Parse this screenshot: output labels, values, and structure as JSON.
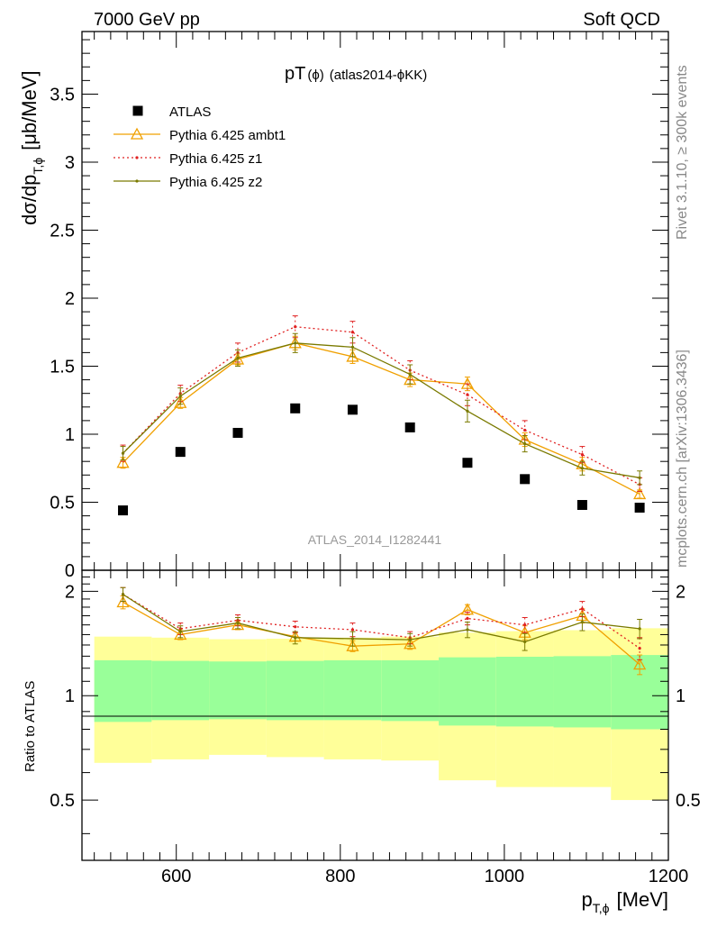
{
  "header": {
    "left": "7000 GeV pp",
    "right": "Soft QCD"
  },
  "side_labels": {
    "rivet": "Rivet 3.1.10, ≥ 300k events",
    "mcplots": "mcplots.cern.ch [arXiv:1306.3436]"
  },
  "watermark": "ATLAS_2014_I1282441",
  "chart_data": [
    {
      "type": "scatter",
      "title_main": "pT",
      "title_sub": "(ϕ)",
      "title_tail": "(atlas2014-ϕKK)",
      "ylabel": "dσ/dp",
      "ylabel_sub": "T,ϕ",
      "ylabel_unit": "[μb/MeV]",
      "xlim": [
        485,
        1200
      ],
      "ylim": [
        0,
        3.96
      ],
      "yticks": [
        0,
        0.5,
        1,
        1.5,
        2,
        2.5,
        3,
        3.5
      ],
      "ytick_labels": [
        "0",
        "0.5",
        "1",
        "1.5",
        "2",
        "2.5",
        "3",
        "3.5"
      ],
      "x": [
        535,
        605,
        675,
        745,
        815,
        885,
        955,
        1025,
        1095,
        1165
      ],
      "series": [
        {
          "name": "ATLAS",
          "color": "#000000",
          "marker": "square",
          "values": [
            0.44,
            0.87,
            1.01,
            1.19,
            1.18,
            1.05,
            0.79,
            0.67,
            0.48,
            0.46
          ]
        },
        {
          "name": "Pythia 6.425 ambt1",
          "color": "#f0a000",
          "marker": "triangle",
          "dash": "",
          "values": [
            0.79,
            1.23,
            1.55,
            1.67,
            1.57,
            1.4,
            1.37,
            0.96,
            0.78,
            0.56
          ],
          "errors": [
            0.04,
            0.04,
            0.04,
            0.05,
            0.05,
            0.05,
            0.05,
            0.05,
            0.05,
            0.03
          ]
        },
        {
          "name": "Pythia 6.425 z1",
          "color": "#e02020",
          "marker": "dot",
          "dash": "2,3",
          "values": [
            0.86,
            1.3,
            1.6,
            1.79,
            1.75,
            1.47,
            1.29,
            1.03,
            0.85,
            0.63
          ],
          "errors": [
            0.06,
            0.06,
            0.07,
            0.08,
            0.08,
            0.07,
            0.08,
            0.07,
            0.06,
            0.05
          ]
        },
        {
          "name": "Pythia 6.425 z2",
          "color": "#7a7a00",
          "marker": "dot",
          "dash": "",
          "values": [
            0.86,
            1.28,
            1.56,
            1.67,
            1.64,
            1.44,
            1.17,
            0.93,
            0.75,
            0.68
          ],
          "errors": [
            0.05,
            0.06,
            0.06,
            0.07,
            0.07,
            0.07,
            0.08,
            0.06,
            0.05,
            0.05
          ]
        }
      ]
    },
    {
      "type": "scatter",
      "ylabel": "Ratio to ATLAS",
      "xlabel": "p",
      "xlabel_sub": "T,ϕ",
      "xlabel_unit": "[MeV]",
      "xlim": [
        485,
        1200
      ],
      "ylim": [
        0.335,
        2.3
      ],
      "xticks": [
        600,
        800,
        1000,
        1200
      ],
      "xtick_labels": [
        "600",
        "800",
        "1000",
        "1200"
      ],
      "yticks": [
        0.5,
        1,
        2
      ],
      "ytick_labels": [
        "0.5",
        "1",
        "2"
      ],
      "bins": [
        [
          500,
          570
        ],
        [
          570,
          640
        ],
        [
          640,
          710
        ],
        [
          710,
          780
        ],
        [
          780,
          850
        ],
        [
          850,
          920
        ],
        [
          920,
          990
        ],
        [
          990,
          1060
        ],
        [
          1060,
          1130
        ],
        [
          1130,
          1200
        ]
      ],
      "band_yellow": [
        [
          0.64,
          1.48
        ],
        [
          0.655,
          1.47
        ],
        [
          0.675,
          1.455
        ],
        [
          0.665,
          1.46
        ],
        [
          0.655,
          1.47
        ],
        [
          0.65,
          1.48
        ],
        [
          0.57,
          1.52
        ],
        [
          0.545,
          1.535
        ],
        [
          0.545,
          1.545
        ],
        [
          0.5,
          1.565
        ]
      ],
      "band_green": [
        [
          0.84,
          1.265
        ],
        [
          0.85,
          1.26
        ],
        [
          0.855,
          1.255
        ],
        [
          0.85,
          1.26
        ],
        [
          0.85,
          1.265
        ],
        [
          0.845,
          1.265
        ],
        [
          0.82,
          1.29
        ],
        [
          0.815,
          1.295
        ],
        [
          0.81,
          1.3
        ],
        [
          0.8,
          1.31
        ]
      ],
      "x": [
        535,
        605,
        675,
        745,
        815,
        885,
        955,
        1025,
        1095,
        1165
      ],
      "series": [
        {
          "name": "Pythia 6.425 ambt1",
          "color": "#f0a000",
          "marker": "triangle",
          "dash": "",
          "values": [
            1.86,
            1.5,
            1.6,
            1.48,
            1.39,
            1.41,
            1.77,
            1.52,
            1.7,
            1.23
          ],
          "errors": [
            0.08,
            0.05,
            0.05,
            0.04,
            0.05,
            0.05,
            0.06,
            0.07,
            0.08,
            0.08
          ]
        },
        {
          "name": "Pythia 6.425 z1",
          "color": "#e02020",
          "marker": "dot",
          "dash": "2,3",
          "values": [
            1.96,
            1.56,
            1.65,
            1.58,
            1.55,
            1.47,
            1.67,
            1.6,
            1.78,
            1.37
          ],
          "errors": [
            0.09,
            0.06,
            0.06,
            0.06,
            0.07,
            0.06,
            0.07,
            0.08,
            0.09,
            0.1
          ]
        },
        {
          "name": "Pythia 6.425 z2",
          "color": "#7a7a00",
          "marker": "dot",
          "dash": "",
          "values": [
            1.96,
            1.53,
            1.62,
            1.47,
            1.46,
            1.45,
            1.55,
            1.43,
            1.63,
            1.56
          ],
          "errors": [
            0.09,
            0.06,
            0.06,
            0.06,
            0.07,
            0.06,
            0.08,
            0.08,
            0.09,
            0.1
          ]
        }
      ]
    }
  ]
}
